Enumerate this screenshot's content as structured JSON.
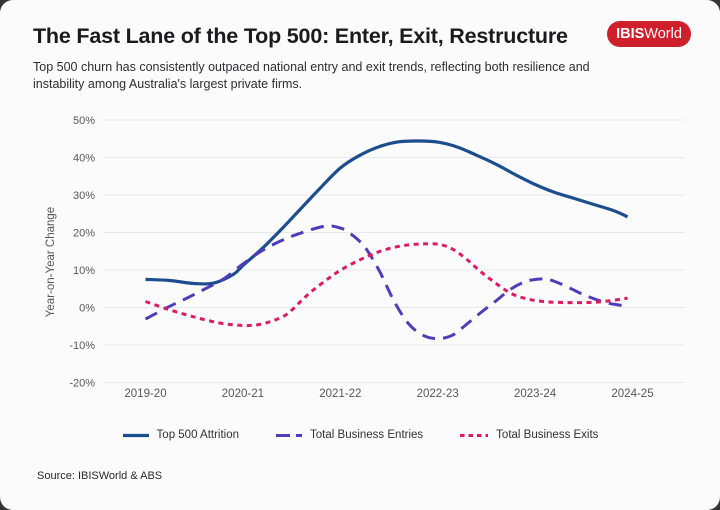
{
  "header": {
    "title": "The Fast Lane of the Top 500: Enter, Exit, Restructure",
    "logo": {
      "bold": "IBIS",
      "regular": "World",
      "bg_color": "#ce202b"
    }
  },
  "subtitle": {
    "line1": "Top 500 churn has consistently outpaced national entry and exit trends, reflecting both resilience and",
    "line2": "instability among Australia's largest private firms."
  },
  "chart_data": {
    "type": "line",
    "title": "",
    "xlabel": "",
    "ylabel": "Year-on-Year Change",
    "categories": [
      "2019-20",
      "2020-21",
      "2021-22",
      "2022-23",
      "2023-24",
      "2024-25"
    ],
    "y_tick_labels": [
      "50%",
      "40%",
      "30%",
      "20%",
      "10%",
      "0%",
      "-10%",
      "-20%"
    ],
    "y_tick_values": [
      50,
      40,
      30,
      20,
      10,
      0,
      -10,
      -20
    ],
    "ylim": [
      -20,
      50
    ],
    "grid": true,
    "grid_color": "#e8e8eb",
    "legend_position": "bottom",
    "series": [
      {
        "name": "Top 500 Attrition",
        "color": "#1c4d8c",
        "style": "solid",
        "dash": [],
        "line_width": 3.2,
        "values_by_year": [
          7.5,
          11,
          37,
          44,
          33,
          24
        ],
        "points": [
          [
            0,
            7.5
          ],
          [
            0.25,
            7.2
          ],
          [
            0.5,
            6.4
          ],
          [
            0.7,
            6.5
          ],
          [
            0.9,
            8.8
          ],
          [
            1,
            11.2
          ],
          [
            1.2,
            15.8
          ],
          [
            1.4,
            21
          ],
          [
            1.6,
            26.5
          ],
          [
            1.8,
            32
          ],
          [
            2,
            37.2
          ],
          [
            2.2,
            40.6
          ],
          [
            2.4,
            42.9
          ],
          [
            2.6,
            44.2
          ],
          [
            2.8,
            44.4
          ],
          [
            3,
            44.1
          ],
          [
            3.2,
            42.8
          ],
          [
            3.4,
            40.6
          ],
          [
            3.6,
            38.2
          ],
          [
            3.8,
            35.4
          ],
          [
            4,
            32.8
          ],
          [
            4.2,
            30.7
          ],
          [
            4.4,
            29.1
          ],
          [
            4.6,
            27.5
          ],
          [
            4.8,
            25.9
          ],
          [
            4.95,
            24.2
          ]
        ]
      },
      {
        "name": "Total Business Entries",
        "color": "#4f3cba",
        "style": "long-dash",
        "dash": [
          13,
          8
        ],
        "line_width": 3,
        "values_by_year": [
          -3,
          11.5,
          21,
          -8,
          7.5,
          0.5
        ],
        "points": [
          [
            0,
            -3.1
          ],
          [
            0.2,
            -0.3
          ],
          [
            0.4,
            2.2
          ],
          [
            0.6,
            4.8
          ],
          [
            0.8,
            7.6
          ],
          [
            1,
            11.6
          ],
          [
            1.2,
            15.2
          ],
          [
            1.4,
            17.9
          ],
          [
            1.6,
            19.9
          ],
          [
            1.85,
            21.7
          ],
          [
            2,
            21.2
          ],
          [
            2.1,
            19.8
          ],
          [
            2.25,
            16.2
          ],
          [
            2.4,
            9.8
          ],
          [
            2.55,
            1.8
          ],
          [
            2.7,
            -4.3
          ],
          [
            2.85,
            -7.4
          ],
          [
            3,
            -8.3
          ],
          [
            3.15,
            -7.4
          ],
          [
            3.3,
            -4.4
          ],
          [
            3.45,
            -1.2
          ],
          [
            3.6,
            1.8
          ],
          [
            3.75,
            4.9
          ],
          [
            3.9,
            6.9
          ],
          [
            4.05,
            7.6
          ],
          [
            4.15,
            7.4
          ],
          [
            4.3,
            5.9
          ],
          [
            4.5,
            3.4
          ],
          [
            4.7,
            1.5
          ],
          [
            4.85,
            0.7
          ],
          [
            4.95,
            0.4
          ]
        ]
      },
      {
        "name": "Total Business Exits",
        "color": "#db1c60",
        "style": "short-dash",
        "dash": [
          5,
          4.5
        ],
        "line_width": 3,
        "values_by_year": [
          1.5,
          -5,
          10,
          17,
          2,
          2.5
        ],
        "points": [
          [
            0,
            1.6
          ],
          [
            0.2,
            -0.2
          ],
          [
            0.4,
            -1.8
          ],
          [
            0.6,
            -3.2
          ],
          [
            0.8,
            -4.3
          ],
          [
            1,
            -4.8
          ],
          [
            1.15,
            -4.6
          ],
          [
            1.3,
            -3.6
          ],
          [
            1.45,
            -1.8
          ],
          [
            1.6,
            1.8
          ],
          [
            1.7,
            4.2
          ],
          [
            1.85,
            7.2
          ],
          [
            2,
            9.9
          ],
          [
            2.2,
            12.7
          ],
          [
            2.4,
            14.9
          ],
          [
            2.6,
            16.3
          ],
          [
            2.8,
            16.9
          ],
          [
            3,
            16.9
          ],
          [
            3.15,
            15.6
          ],
          [
            3.3,
            12.8
          ],
          [
            3.45,
            9.4
          ],
          [
            3.6,
            6.4
          ],
          [
            3.75,
            3.8
          ],
          [
            3.9,
            2.4
          ],
          [
            4.05,
            1.7
          ],
          [
            4.2,
            1.4
          ],
          [
            4.4,
            1.3
          ],
          [
            4.6,
            1.4
          ],
          [
            4.8,
            1.9
          ],
          [
            4.95,
            2.5
          ]
        ]
      }
    ]
  },
  "source": "Source: IBISWorld & ABS"
}
